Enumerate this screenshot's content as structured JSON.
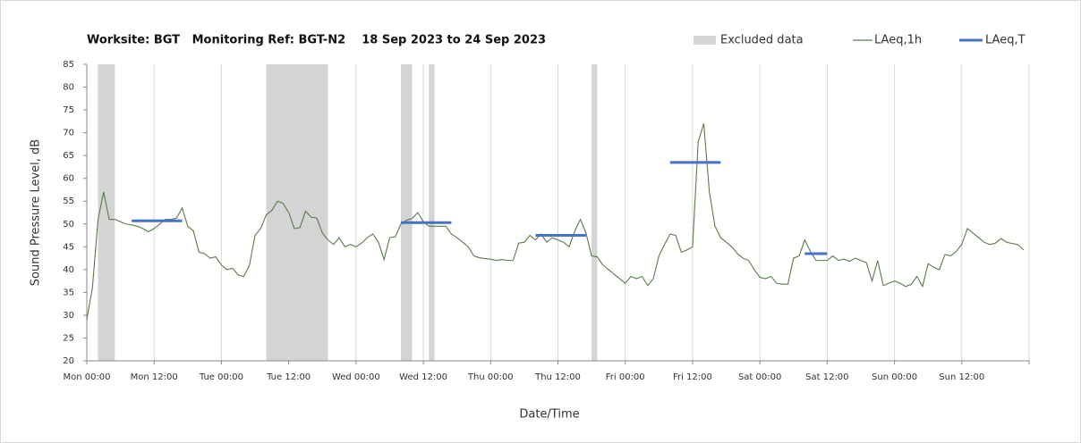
{
  "chart_data": {
    "type": "line",
    "title": "Worksite: BGT   Monitoring Ref: BGT-N2    18 Sep 2023 to 24 Sep 2023",
    "x_label": "Date/Time",
    "y_label": "Sound Pressure Level, dB",
    "xlim": [
      0,
      168
    ],
    "ylim": [
      20,
      85
    ],
    "xticks": [
      {
        "value": 0,
        "label": "Mon 00:00"
      },
      {
        "value": 12,
        "label": "Mon 12:00"
      },
      {
        "value": 24,
        "label": "Tue 00:00"
      },
      {
        "value": 36,
        "label": "Tue 12:00"
      },
      {
        "value": 48,
        "label": "Wed 00:00"
      },
      {
        "value": 60,
        "label": "Wed 12:00"
      },
      {
        "value": 72,
        "label": "Thu 00:00"
      },
      {
        "value": 84,
        "label": "Thu 12:00"
      },
      {
        "value": 96,
        "label": "Fri 00:00"
      },
      {
        "value": 108,
        "label": "Fri 12:00"
      },
      {
        "value": 120,
        "label": "Sat 00:00"
      },
      {
        "value": 132,
        "label": "Sat 12:00"
      },
      {
        "value": 144,
        "label": "Sun 00:00"
      },
      {
        "value": 156,
        "label": "Sun 12:00"
      },
      {
        "value": 168,
        "label": ""
      }
    ],
    "yticks": [
      20,
      25,
      30,
      35,
      40,
      45,
      50,
      55,
      60,
      65,
      70,
      75,
      80,
      85
    ],
    "grid": "x",
    "excluded": {
      "name": "Excluded data",
      "color": "#d4d4d4",
      "ranges": [
        [
          2,
          5
        ],
        [
          32,
          43
        ],
        [
          56,
          58
        ],
        [
          61,
          62
        ],
        [
          90,
          91
        ]
      ]
    },
    "series": [
      {
        "name": "LAeq,1h",
        "color": "#5b7a4c",
        "x": [
          0,
          1,
          2,
          3,
          4,
          5,
          6,
          7,
          8,
          9,
          10,
          11,
          12,
          13,
          14,
          15,
          16,
          17,
          18,
          19,
          20,
          21,
          22,
          23,
          24,
          25,
          26,
          27,
          28,
          29,
          30,
          31,
          32,
          33,
          34,
          35,
          36,
          37,
          38,
          39,
          40,
          41,
          42,
          43,
          44,
          45,
          46,
          47,
          48,
          49,
          50,
          51,
          52,
          53,
          54,
          55,
          56,
          57,
          58,
          59,
          60,
          61,
          62,
          63,
          64,
          65,
          66,
          67,
          68,
          69,
          70,
          71,
          72,
          73,
          74,
          75,
          76,
          77,
          78,
          79,
          80,
          81,
          82,
          83,
          84,
          85,
          86,
          87,
          88,
          89,
          90,
          91,
          92,
          93,
          94,
          95,
          96,
          97,
          98,
          99,
          100,
          101,
          102,
          103,
          104,
          105,
          106,
          107,
          108,
          109,
          110,
          111,
          112,
          113,
          114,
          115,
          116,
          117,
          118,
          119,
          120,
          121,
          122,
          123,
          124,
          125,
          126,
          127,
          128,
          129,
          130,
          131,
          132,
          133,
          134,
          135,
          136,
          137,
          138,
          139,
          140,
          141,
          142,
          143,
          144,
          145,
          146,
          147,
          148,
          149,
          150,
          151,
          152,
          153,
          154,
          155,
          156,
          157,
          158,
          159,
          160,
          161,
          162,
          163,
          164,
          165,
          166,
          167
        ],
        "values": [
          29,
          36,
          51,
          57,
          51,
          51,
          50.5,
          50,
          49.8,
          49.5,
          49,
          48.3,
          49,
          50,
          51,
          51,
          51.3,
          53.5,
          49.5,
          48.5,
          43.8,
          43.5,
          42.5,
          42.8,
          41,
          40,
          40.3,
          38.8,
          38.5,
          41,
          47.5,
          49,
          52,
          53,
          55,
          54.5,
          52.5,
          49,
          49.2,
          52.8,
          51.5,
          51.3,
          48,
          46.5,
          45.5,
          47,
          45,
          45.5,
          45,
          45.8,
          47,
          47.8,
          46,
          42.2,
          47,
          47.2,
          50,
          50.8,
          51.2,
          52.5,
          50.5,
          49.5,
          49.5,
          49.5,
          49.5,
          47.8,
          47,
          46,
          45,
          43,
          42.6,
          42.4,
          42.3,
          42,
          42.2,
          42,
          42,
          45.8,
          46,
          47.5,
          46.5,
          47.8,
          46,
          47,
          46.5,
          46,
          45,
          48.5,
          51,
          48,
          43,
          42.8,
          41,
          40,
          39,
          38,
          37,
          38.5,
          38,
          38.5,
          36.5,
          38,
          43,
          45.5,
          47.8,
          47.5,
          43.8,
          44.3,
          45,
          68,
          72,
          57,
          49.5,
          47,
          46,
          45,
          43.5,
          42.5,
          42,
          40,
          38.3,
          38,
          38.5,
          37,
          36.8,
          36.8,
          42.5,
          43,
          46.5,
          44,
          42,
          42,
          42,
          43,
          42,
          42.3,
          41.8,
          42.5,
          42,
          41.5,
          37.5,
          42,
          36.5,
          37,
          37.5,
          37,
          36.3,
          36.8,
          38.5,
          36.3,
          41.3,
          40.5,
          40,
          43.3,
          43,
          44,
          45.5,
          49,
          48,
          47,
          46,
          45.5,
          45.8,
          46.8,
          46,
          45.7,
          45.5,
          44.3
        ]
      }
    ],
    "segments": {
      "name": "LAeq,T",
      "color": "#4472c4",
      "items": [
        {
          "x": [
            8,
            17
          ],
          "value": 50.7
        },
        {
          "x": [
            56,
            65
          ],
          "value": 50.3
        },
        {
          "x": [
            80,
            89
          ],
          "value": 47.5
        },
        {
          "x": [
            104,
            113
          ],
          "value": 63.5
        },
        {
          "x": [
            128,
            132
          ],
          "value": 43.5
        }
      ]
    }
  }
}
